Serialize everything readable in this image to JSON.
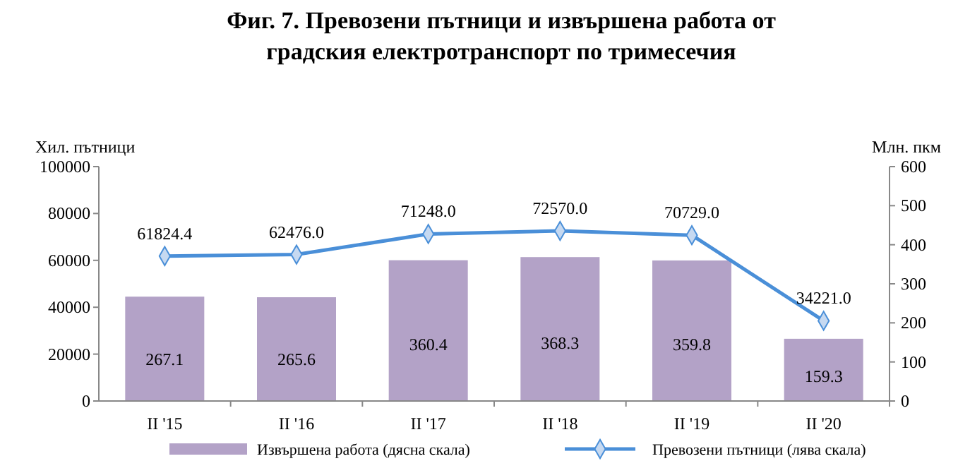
{
  "chart_data": {
    "type": "bar",
    "title": "Фиг. 7. Превозени пътници и извършена работа от градския електротранспорт по тримесечия",
    "ylabel": "Хил. пътници",
    "y2label": "Млн. пкм",
    "categories": [
      "II '15",
      "II '16",
      "II '17",
      "II '18",
      "II '19",
      "II '20"
    ],
    "series": [
      {
        "name": "Извършена работа (дясна скала)",
        "axis": "y2",
        "color": "#b3a2c7",
        "values": [
          267.1,
          265.6,
          360.4,
          368.3,
          359.8,
          159.3
        ],
        "value_labels": [
          "267.1",
          "265.6",
          "360.4",
          "368.3",
          "359.8",
          "159.3"
        ]
      },
      {
        "name": "Превозени пътници (лява скала)",
        "type": "line",
        "axis": "y",
        "color": "#4a8fd8",
        "marker": "diamond",
        "values": [
          61824.4,
          62476,
          71248,
          72570,
          70729,
          34221
        ],
        "value_labels": [
          "61824.4",
          "62476.0",
          "71248.0",
          "72570.0",
          "70729.0",
          "34221.0"
        ]
      }
    ],
    "ylim": [
      0,
      100000
    ],
    "yticks": [
      0,
      20000,
      40000,
      60000,
      80000,
      100000
    ],
    "y2lim": [
      0,
      600
    ],
    "y2ticks": [
      0,
      100,
      200,
      300,
      400,
      500,
      600
    ],
    "legend": "bottom",
    "grid": false
  }
}
